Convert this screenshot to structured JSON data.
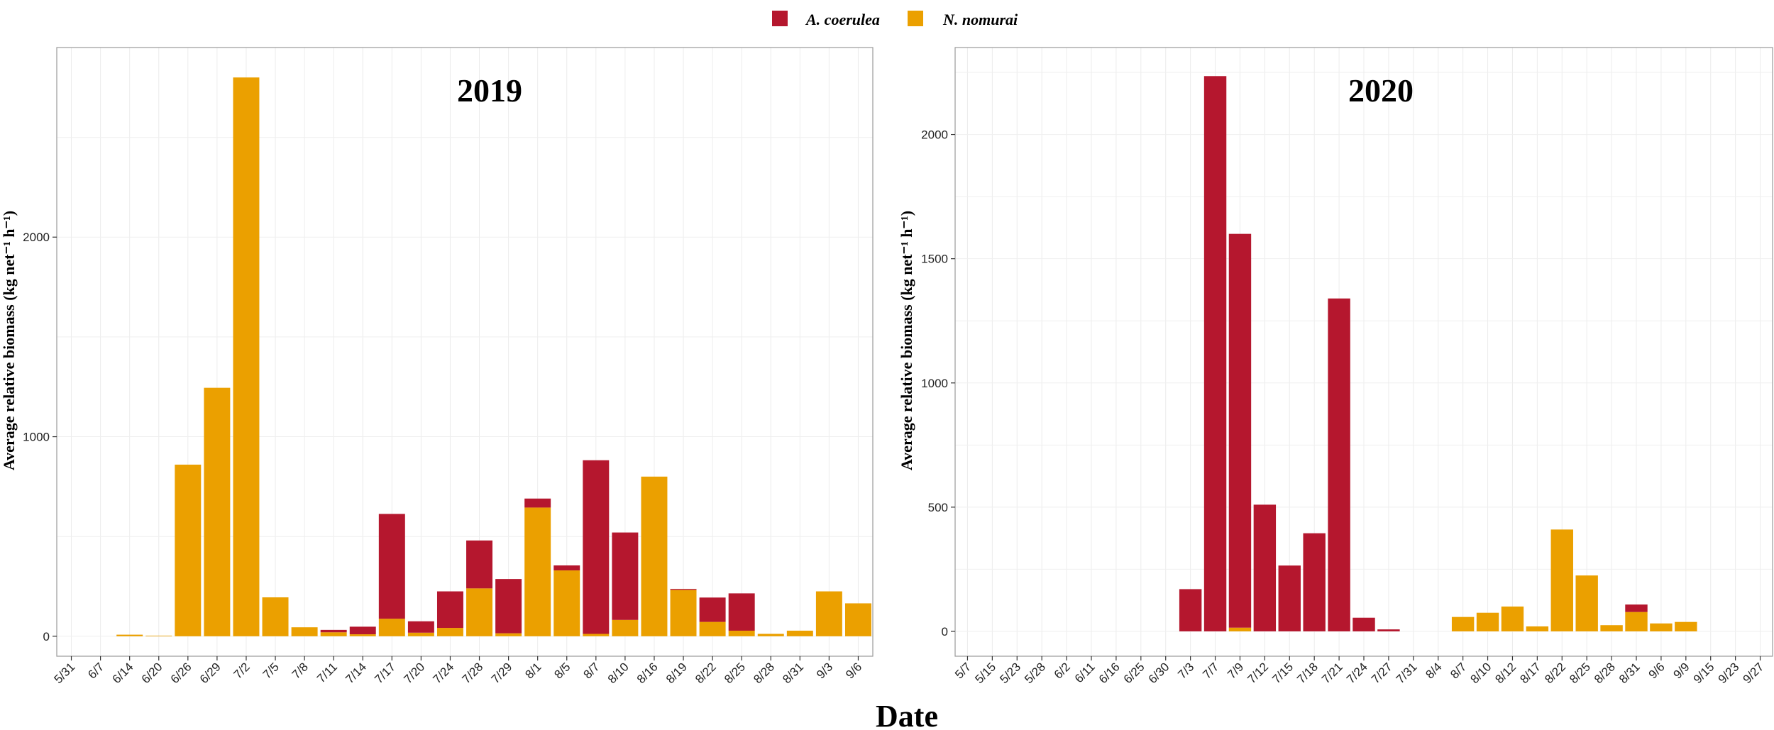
{
  "colors": {
    "a_coerulea": "#B5172E",
    "n_nomurai": "#EBA000"
  },
  "legend": [
    {
      "key": "a_coerulea",
      "label": "A. coerulea"
    },
    {
      "key": "n_nomurai",
      "label": "N. nomurai"
    }
  ],
  "xlabel": "Date",
  "chart_data": [
    {
      "type": "bar",
      "stacked": true,
      "title": "2019",
      "ylabel": "Average relative biomass (kg net⁻¹ h⁻¹)",
      "ylim": [
        -100,
        2950
      ],
      "yticks": [
        0,
        1000,
        2000
      ],
      "categories": [
        "5/31",
        "6/7",
        "6/14",
        "6/20",
        "6/26",
        "6/29",
        "7/2",
        "7/5",
        "7/8",
        "7/11",
        "7/14",
        "7/17",
        "7/20",
        "7/24",
        "7/28",
        "7/29",
        "8/1",
        "8/5",
        "8/7",
        "8/10",
        "8/16",
        "8/19",
        "8/22",
        "8/25",
        "8/28",
        "8/31",
        "9/3",
        "9/6"
      ],
      "series": [
        {
          "name": "N. nomurai",
          "color_key": "n_nomurai",
          "values": [
            0,
            0,
            8,
            3,
            860,
            1245,
            2800,
            195,
            45,
            20,
            10,
            88,
            18,
            42,
            240,
            15,
            645,
            330,
            12,
            82,
            800,
            232,
            72,
            28,
            12,
            28,
            225,
            165
          ]
        },
        {
          "name": "A. coerulea",
          "color_key": "a_coerulea",
          "values": [
            0,
            0,
            0,
            0,
            0,
            0,
            0,
            0,
            0,
            12,
            38,
            525,
            57,
            183,
            240,
            272,
            45,
            25,
            870,
            438,
            0,
            5,
            122,
            187,
            0,
            0,
            0,
            0
          ]
        }
      ]
    },
    {
      "type": "bar",
      "stacked": true,
      "title": "2020",
      "ylabel": "Average relative biomass (kg net⁻¹ h⁻¹)",
      "ylim": [
        -100,
        2350
      ],
      "yticks": [
        0,
        500,
        1000,
        1500,
        2000
      ],
      "categories": [
        "5/7",
        "5/15",
        "5/23",
        "5/28",
        "6/2",
        "6/11",
        "6/16",
        "6/25",
        "6/30",
        "7/3",
        "7/7",
        "7/9",
        "7/12",
        "7/15",
        "7/18",
        "7/21",
        "7/24",
        "7/27",
        "7/31",
        "8/4",
        "8/7",
        "8/10",
        "8/12",
        "8/17",
        "8/22",
        "8/25",
        "8/28",
        "8/31",
        "9/6",
        "9/9",
        "9/15",
        "9/23",
        "9/27"
      ],
      "series": [
        {
          "name": "N. nomurai",
          "color_key": "n_nomurai",
          "values": [
            0,
            0,
            0,
            0,
            0,
            0,
            0,
            0,
            0,
            0,
            0,
            15,
            0,
            0,
            0,
            0,
            0,
            0,
            0,
            0,
            58,
            75,
            100,
            20,
            410,
            225,
            25,
            78,
            32,
            38,
            0,
            0,
            0
          ]
        },
        {
          "name": "A. coerulea",
          "color_key": "a_coerulea",
          "values": [
            0,
            0,
            0,
            0,
            0,
            0,
            0,
            0,
            0,
            170,
            2235,
            1585,
            510,
            265,
            395,
            1340,
            55,
            8,
            0,
            0,
            0,
            0,
            0,
            0,
            0,
            0,
            0,
            30,
            0,
            0,
            0,
            0,
            0
          ]
        }
      ]
    }
  ]
}
